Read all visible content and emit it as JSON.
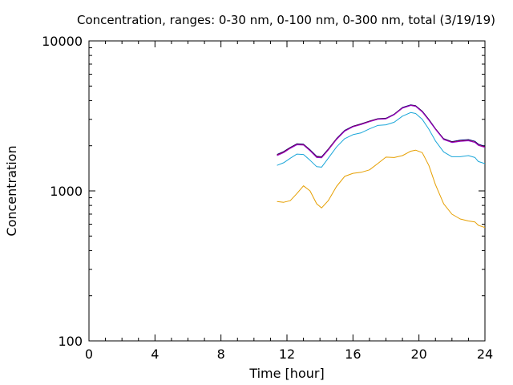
{
  "chart_data": {
    "type": "line",
    "title": "Concentration, ranges: 0-30 nm, 0-100 nm, 0-300 nm, total (3/19/19)",
    "xlabel": "Time [hour]",
    "ylabel": "Concentration",
    "xlim": [
      0,
      24
    ],
    "ylim": [
      100,
      10000
    ],
    "yscale": "log",
    "grid": false,
    "legend": "none",
    "xticks": [
      0,
      4,
      8,
      12,
      16,
      20,
      24
    ],
    "xtick_labels": [
      "0",
      "4",
      "8",
      "12",
      "16",
      "20",
      "24"
    ],
    "yticks": [
      100,
      1000,
      10000
    ],
    "ytick_labels": [
      "100",
      "1000",
      "10000"
    ],
    "x": [
      11.4,
      11.8,
      12.2,
      12.6,
      13.0,
      13.4,
      13.8,
      14.1,
      14.5,
      15.0,
      15.5,
      16.0,
      16.5,
      17.0,
      17.5,
      18.0,
      18.5,
      19.0,
      19.5,
      19.8,
      20.2,
      20.6,
      21.0,
      21.5,
      22.0,
      22.5,
      23.0,
      23.4,
      23.6,
      24.0
    ],
    "series": [
      {
        "color": "#000080",
        "values": [
          1750,
          1830,
          1950,
          2060,
          2050,
          1880,
          1700,
          1690,
          1900,
          2230,
          2530,
          2700,
          2800,
          2920,
          3030,
          3050,
          3250,
          3600,
          3750,
          3700,
          3400,
          3000,
          2600,
          2230,
          2130,
          2180,
          2200,
          2140,
          2050,
          1980
        ]
      },
      {
        "color": "#cc0000",
        "values": [
          1730,
          1810,
          1930,
          2040,
          2030,
          1860,
          1680,
          1670,
          1880,
          2210,
          2510,
          2680,
          2780,
          2900,
          3010,
          3030,
          3230,
          3570,
          3720,
          3670,
          3370,
          2970,
          2580,
          2210,
          2110,
          2150,
          2170,
          2110,
          2020,
          1960
        ]
      },
      {
        "color": "#9400d3",
        "values": [
          1720,
          1800,
          1920,
          2030,
          2020,
          1850,
          1670,
          1660,
          1870,
          2200,
          2500,
          2670,
          2770,
          2890,
          3000,
          3020,
          3220,
          3560,
          3710,
          3660,
          3360,
          2960,
          2570,
          2200,
          2100,
          2140,
          2160,
          2100,
          2010,
          1950
        ]
      },
      {
        "color": "#1aa6d9",
        "values": [
          1480,
          1540,
          1650,
          1760,
          1750,
          1600,
          1450,
          1440,
          1650,
          1960,
          2230,
          2370,
          2440,
          2590,
          2730,
          2760,
          2870,
          3150,
          3330,
          3280,
          3000,
          2580,
          2150,
          1820,
          1690,
          1690,
          1720,
          1670,
          1570,
          1520
        ]
      },
      {
        "color": "#e69f00",
        "values": [
          850,
          840,
          860,
          960,
          1080,
          1000,
          820,
          770,
          860,
          1070,
          1250,
          1310,
          1330,
          1380,
          1520,
          1680,
          1670,
          1720,
          1840,
          1870,
          1800,
          1480,
          1100,
          820,
          700,
          650,
          630,
          620,
          590,
          570
        ]
      }
    ]
  }
}
